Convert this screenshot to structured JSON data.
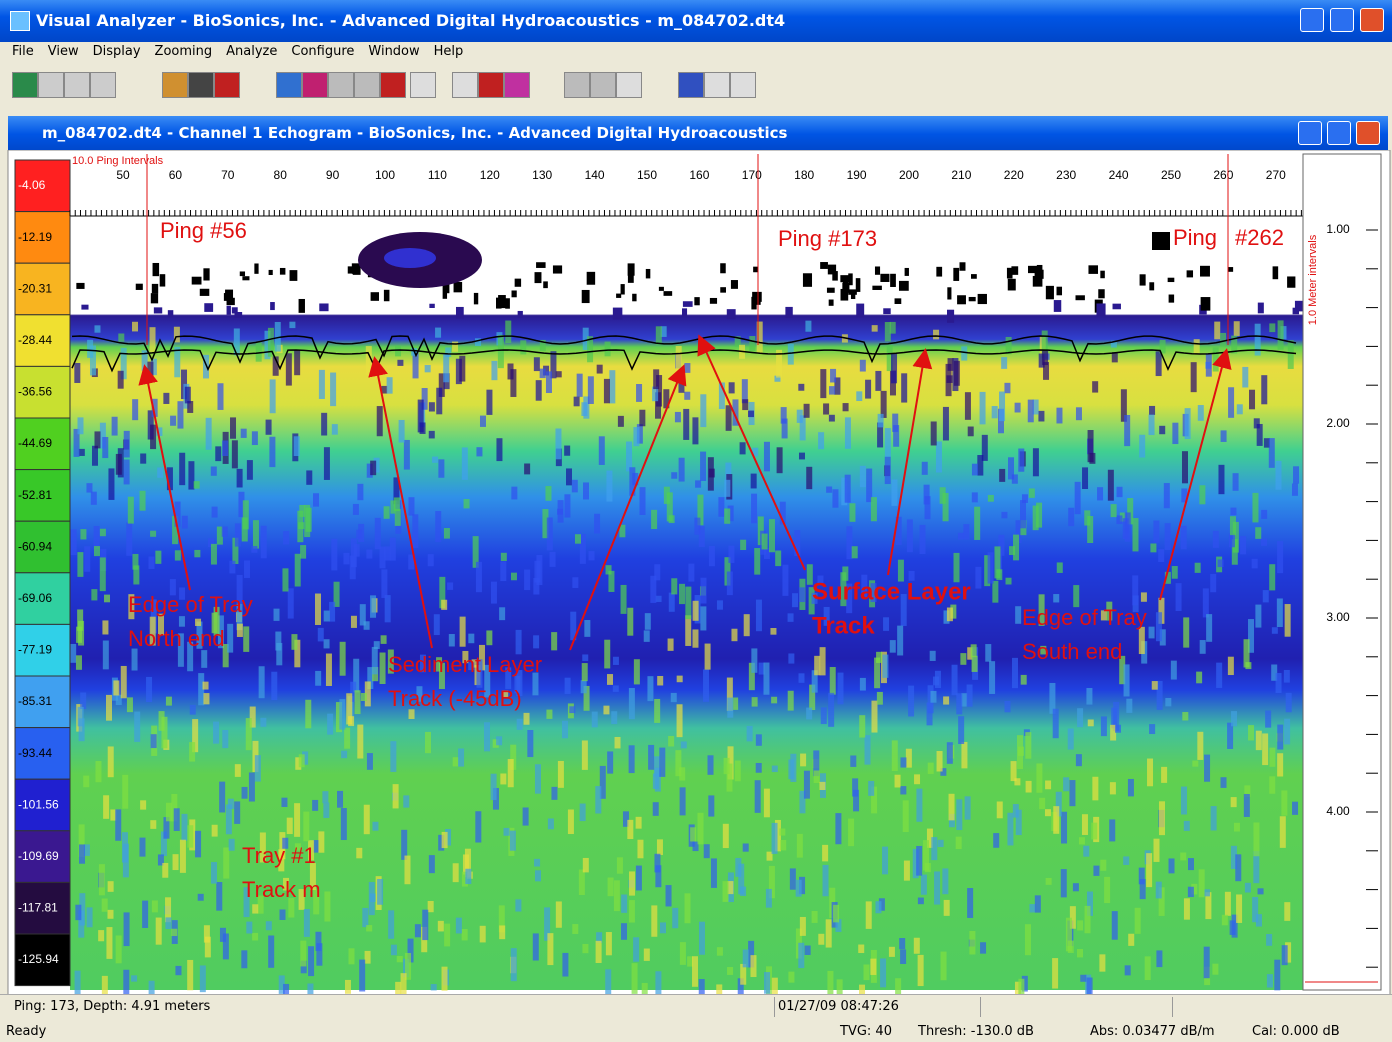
{
  "app_title": "Visual Analyzer - BioSonics, Inc. - Advanced Digital Hydroacoustics - m_084702.dt4",
  "menu": [
    "File",
    "View",
    "Display",
    "Zooming",
    "Analyze",
    "Configure",
    "Window",
    "Help"
  ],
  "window_title": "m_084702.dt4 - Channel 1  Echogram - BioSonics, Inc. - Advanced Digital Hydroacoustics",
  "color_scale": [
    "-4.06",
    "-12.19",
    "-20.31",
    "-28.44",
    "-36.56",
    "-44.69",
    "-52.81",
    "-60.94",
    "-69.06",
    "-77.19",
    "-85.31",
    "-93.44",
    "-101.56",
    "-109.69",
    "-117.81",
    "-125.94"
  ],
  "ping_axis": {
    "label": "10.0 Ping Intervals",
    "ticks": [
      50,
      60,
      70,
      80,
      90,
      100,
      110,
      120,
      130,
      140,
      150,
      160,
      170,
      180,
      190,
      200,
      210,
      220,
      230,
      240,
      250,
      260,
      270
    ]
  },
  "depth_axis": {
    "label": "1.0 Meter intervals",
    "ticks": [
      "1.00",
      "2.00",
      "3.00",
      "4.00"
    ]
  },
  "annotations": {
    "ping_56": "Ping #56",
    "ping_173": "Ping #173",
    "ping_262_a": "Ping",
    "ping_262_b": "#262",
    "edge_north": [
      "Edge of Tray",
      "North end"
    ],
    "sediment": [
      "Sediment Layer",
      "Track (-45dB)"
    ],
    "surface": [
      "Surface Layer",
      "Track"
    ],
    "edge_south": [
      "Edge of Tray",
      "South end"
    ],
    "tray": [
      "Tray #1",
      "Track m"
    ]
  },
  "status": {
    "ping_depth": "Ping: 173, Depth: 4.91 meters",
    "timestamp": "01/27/09 08:47:26",
    "ready": "Ready",
    "tvg": "TVG: 40",
    "thresh": "Thresh: -130.0 dB",
    "abs": "Abs: 0.03477 dB/m",
    "cal": "Cal: 0.000 dB"
  }
}
